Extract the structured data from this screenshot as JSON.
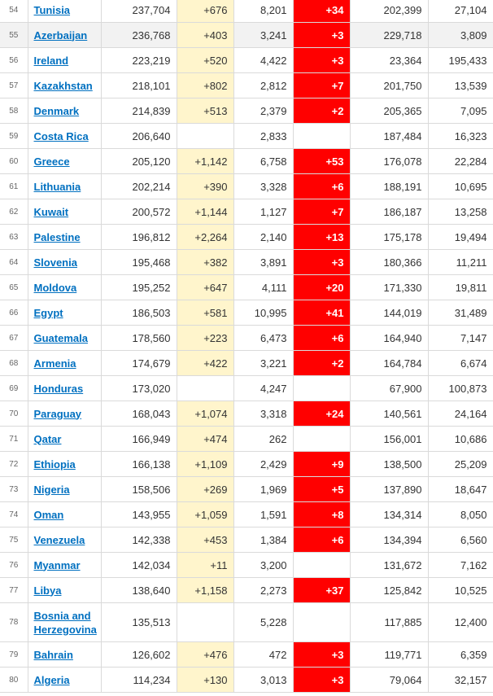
{
  "table": {
    "rows": [
      {
        "rank": "54",
        "country": "Tunisia",
        "total_cases": "237,704",
        "new_cases": "+676",
        "total_deaths": "8,201",
        "new_deaths": "+34",
        "total_recovered": "202,399",
        "active_cases": "27,104"
      },
      {
        "rank": "55",
        "country": "Azerbaijan",
        "total_cases": "236,768",
        "new_cases": "+403",
        "total_deaths": "3,241",
        "new_deaths": "+3",
        "total_recovered": "229,718",
        "active_cases": "3,809"
      },
      {
        "rank": "56",
        "country": "Ireland",
        "total_cases": "223,219",
        "new_cases": "+520",
        "total_deaths": "4,422",
        "new_deaths": "+3",
        "total_recovered": "23,364",
        "active_cases": "195,433"
      },
      {
        "rank": "57",
        "country": "Kazakhstan",
        "total_cases": "218,101",
        "new_cases": "+802",
        "total_deaths": "2,812",
        "new_deaths": "+7",
        "total_recovered": "201,750",
        "active_cases": "13,539"
      },
      {
        "rank": "58",
        "country": "Denmark",
        "total_cases": "214,839",
        "new_cases": "+513",
        "total_deaths": "2,379",
        "new_deaths": "+2",
        "total_recovered": "205,365",
        "active_cases": "7,095"
      },
      {
        "rank": "59",
        "country": "Costa Rica",
        "total_cases": "206,640",
        "new_cases": "",
        "total_deaths": "2,833",
        "new_deaths": "",
        "total_recovered": "187,484",
        "active_cases": "16,323"
      },
      {
        "rank": "60",
        "country": "Greece",
        "total_cases": "205,120",
        "new_cases": "+1,142",
        "total_deaths": "6,758",
        "new_deaths": "+53",
        "total_recovered": "176,078",
        "active_cases": "22,284"
      },
      {
        "rank": "61",
        "country": "Lithuania",
        "total_cases": "202,214",
        "new_cases": "+390",
        "total_deaths": "3,328",
        "new_deaths": "+6",
        "total_recovered": "188,191",
        "active_cases": "10,695"
      },
      {
        "rank": "62",
        "country": "Kuwait",
        "total_cases": "200,572",
        "new_cases": "+1,144",
        "total_deaths": "1,127",
        "new_deaths": "+7",
        "total_recovered": "186,187",
        "active_cases": "13,258"
      },
      {
        "rank": "63",
        "country": "Palestine",
        "total_cases": "196,812",
        "new_cases": "+2,264",
        "total_deaths": "2,140",
        "new_deaths": "+13",
        "total_recovered": "175,178",
        "active_cases": "19,494"
      },
      {
        "rank": "64",
        "country": "Slovenia",
        "total_cases": "195,468",
        "new_cases": "+382",
        "total_deaths": "3,891",
        "new_deaths": "+3",
        "total_recovered": "180,366",
        "active_cases": "11,211"
      },
      {
        "rank": "65",
        "country": "Moldova",
        "total_cases": "195,252",
        "new_cases": "+647",
        "total_deaths": "4,111",
        "new_deaths": "+20",
        "total_recovered": "171,330",
        "active_cases": "19,811"
      },
      {
        "rank": "66",
        "country": "Egypt",
        "total_cases": "186,503",
        "new_cases": "+581",
        "total_deaths": "10,995",
        "new_deaths": "+41",
        "total_recovered": "144,019",
        "active_cases": "31,489"
      },
      {
        "rank": "67",
        "country": "Guatemala",
        "total_cases": "178,560",
        "new_cases": "+223",
        "total_deaths": "6,473",
        "new_deaths": "+6",
        "total_recovered": "164,940",
        "active_cases": "7,147"
      },
      {
        "rank": "68",
        "country": "Armenia",
        "total_cases": "174,679",
        "new_cases": "+422",
        "total_deaths": "3,221",
        "new_deaths": "+2",
        "total_recovered": "164,784",
        "active_cases": "6,674"
      },
      {
        "rank": "69",
        "country": "Honduras",
        "total_cases": "173,020",
        "new_cases": "",
        "total_deaths": "4,247",
        "new_deaths": "",
        "total_recovered": "67,900",
        "active_cases": "100,873"
      },
      {
        "rank": "70",
        "country": "Paraguay",
        "total_cases": "168,043",
        "new_cases": "+1,074",
        "total_deaths": "3,318",
        "new_deaths": "+24",
        "total_recovered": "140,561",
        "active_cases": "24,164"
      },
      {
        "rank": "71",
        "country": "Qatar",
        "total_cases": "166,949",
        "new_cases": "+474",
        "total_deaths": "262",
        "new_deaths": "",
        "total_recovered": "156,001",
        "active_cases": "10,686"
      },
      {
        "rank": "72",
        "country": "Ethiopia",
        "total_cases": "166,138",
        "new_cases": "+1,109",
        "total_deaths": "2,429",
        "new_deaths": "+9",
        "total_recovered": "138,500",
        "active_cases": "25,209"
      },
      {
        "rank": "73",
        "country": "Nigeria",
        "total_cases": "158,506",
        "new_cases": "+269",
        "total_deaths": "1,969",
        "new_deaths": "+5",
        "total_recovered": "137,890",
        "active_cases": "18,647"
      },
      {
        "rank": "74",
        "country": "Oman",
        "total_cases": "143,955",
        "new_cases": "+1,059",
        "total_deaths": "1,591",
        "new_deaths": "+8",
        "total_recovered": "134,314",
        "active_cases": "8,050"
      },
      {
        "rank": "75",
        "country": "Venezuela",
        "total_cases": "142,338",
        "new_cases": "+453",
        "total_deaths": "1,384",
        "new_deaths": "+6",
        "total_recovered": "134,394",
        "active_cases": "6,560"
      },
      {
        "rank": "76",
        "country": "Myanmar",
        "total_cases": "142,034",
        "new_cases": "+11",
        "total_deaths": "3,200",
        "new_deaths": "",
        "total_recovered": "131,672",
        "active_cases": "7,162"
      },
      {
        "rank": "77",
        "country": "Libya",
        "total_cases": "138,640",
        "new_cases": "+1,158",
        "total_deaths": "2,273",
        "new_deaths": "+37",
        "total_recovered": "125,842",
        "active_cases": "10,525"
      },
      {
        "rank": "78",
        "country": "Bosnia and Herzegovina",
        "total_cases": "135,513",
        "new_cases": "",
        "total_deaths": "5,228",
        "new_deaths": "",
        "total_recovered": "117,885",
        "active_cases": "12,400"
      },
      {
        "rank": "79",
        "country": "Bahrain",
        "total_cases": "126,602",
        "new_cases": "+476",
        "total_deaths": "472",
        "new_deaths": "+3",
        "total_recovered": "119,771",
        "active_cases": "6,359"
      },
      {
        "rank": "80",
        "country": "Algeria",
        "total_cases": "114,234",
        "new_cases": "+130",
        "total_deaths": "3,013",
        "new_deaths": "+3",
        "total_recovered": "79,064",
        "active_cases": "32,157"
      }
    ],
    "highlighted_rank": "55",
    "colors": {
      "new_cases_bg": "#fff5cc",
      "new_deaths_bg": "#ff0000",
      "link": "#0070c0",
      "highlight_row": "#f2f2f2"
    }
  }
}
